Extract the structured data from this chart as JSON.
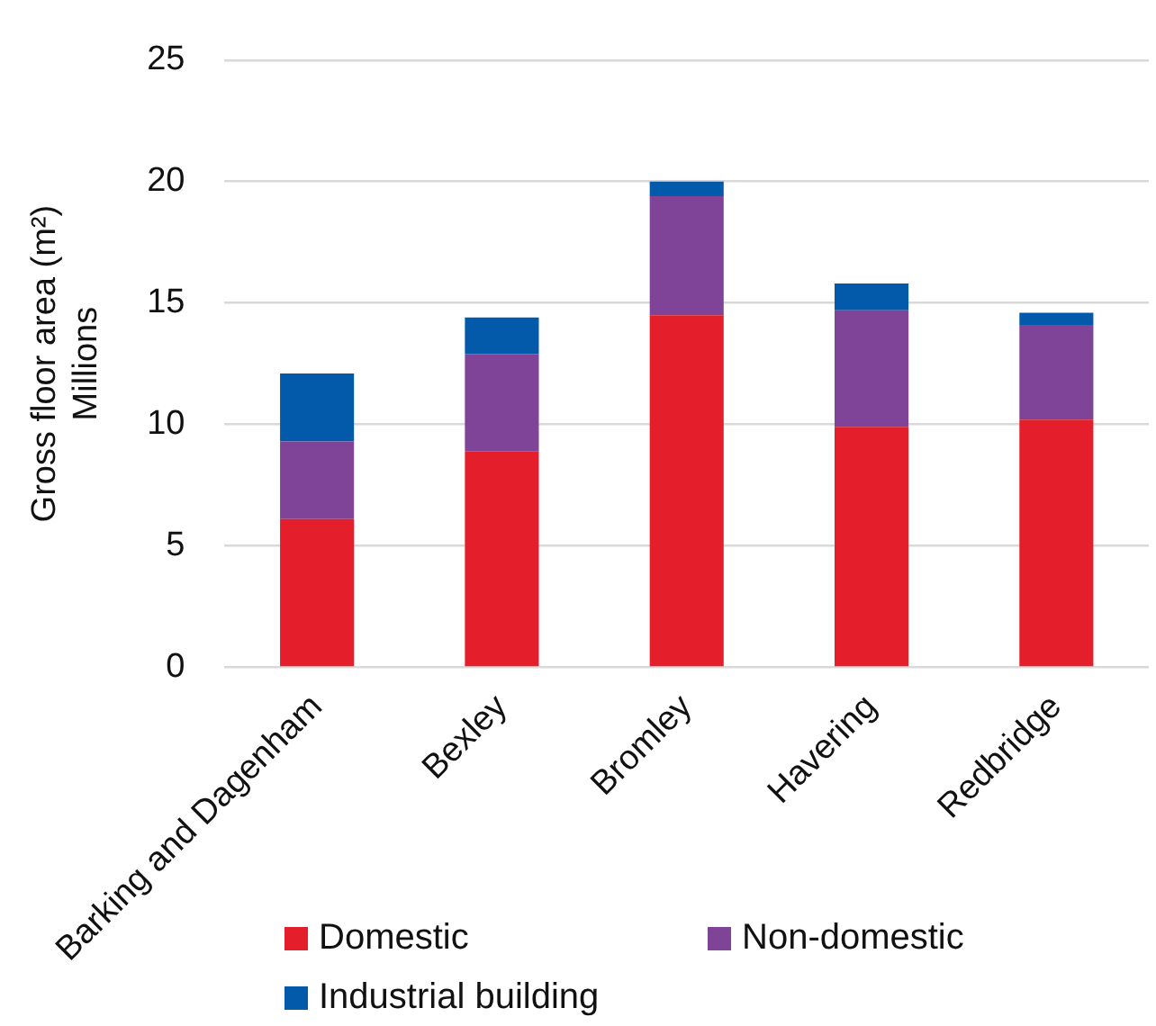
{
  "chart_data": {
    "type": "bar",
    "stacked": true,
    "ylabel": "Gross floor area (m²)\nMillions",
    "categories": [
      "Barking and Dagenham",
      "Bexley",
      "Bromley",
      "Havering",
      "Redbridge"
    ],
    "series": [
      {
        "name": "Domestic",
        "color": "#e41e2b",
        "values": [
          6.1,
          8.9,
          14.5,
          9.9,
          10.2
        ]
      },
      {
        "name": "Non-domestic",
        "color": "#7f4397",
        "values": [
          3.2,
          4.0,
          4.9,
          4.8,
          3.9
        ]
      },
      {
        "name": "Industrial building",
        "color": "#035aab",
        "values": [
          2.8,
          1.5,
          0.6,
          1.1,
          0.5
        ]
      }
    ],
    "ylim": [
      0,
      25
    ],
    "yticks": [
      0,
      5,
      10,
      15,
      20,
      25
    ],
    "grid": "y",
    "legend": "bottom"
  }
}
